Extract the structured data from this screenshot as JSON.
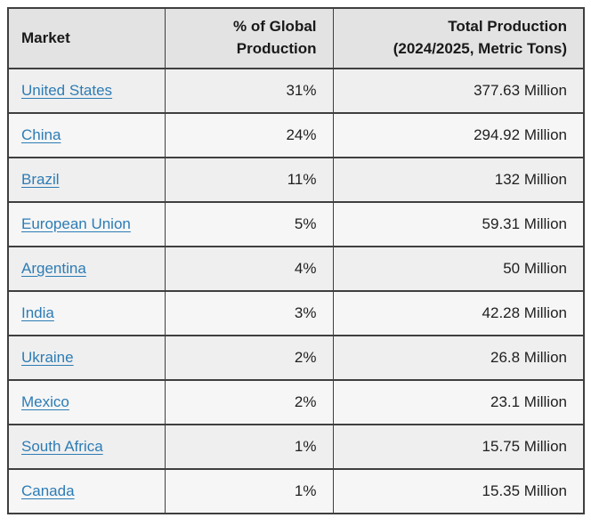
{
  "colors": {
    "header_bg": "#e3e3e3",
    "row_odd_bg": "#efefef",
    "row_even_bg": "#f6f6f6",
    "border": "#3f3f3f",
    "link": "#2d7cb5",
    "text": "#1f1f1f"
  },
  "header": {
    "market": "Market",
    "pct_line1": "% of Global",
    "pct_line2": "Production",
    "total_line1": "Total Production",
    "total_line2": "(2024/2025, Metric Tons)"
  },
  "rows": [
    {
      "market": "United States",
      "pct": "31%",
      "total": "377.63 Million"
    },
    {
      "market": "China",
      "pct": "24%",
      "total": "294.92 Million"
    },
    {
      "market": "Brazil",
      "pct": "11%",
      "total": "132 Million"
    },
    {
      "market": "European Union",
      "pct": "5%",
      "total": "59.31 Million"
    },
    {
      "market": "Argentina",
      "pct": "4%",
      "total": "50 Million"
    },
    {
      "market": "India",
      "pct": "3%",
      "total": "42.28 Million"
    },
    {
      "market": "Ukraine",
      "pct": "2%",
      "total": "26.8 Million"
    },
    {
      "market": "Mexico",
      "pct": "2%",
      "total": "23.1 Million"
    },
    {
      "market": "South Africa",
      "pct": "1%",
      "total": "15.75 Million"
    },
    {
      "market": "Canada",
      "pct": "1%",
      "total": "15.35 Million"
    }
  ],
  "chart_data": {
    "type": "table",
    "title": "",
    "columns": [
      "Market",
      "% of Global Production",
      "Total Production (2024/2025, Metric Tons)"
    ],
    "rows": [
      [
        "United States",
        "31%",
        "377.63 Million"
      ],
      [
        "China",
        "24%",
        "294.92 Million"
      ],
      [
        "Brazil",
        "11%",
        "132 Million"
      ],
      [
        "European Union",
        "5%",
        "59.31 Million"
      ],
      [
        "Argentina",
        "4%",
        "50 Million"
      ],
      [
        "India",
        "3%",
        "42.28 Million"
      ],
      [
        "Ukraine",
        "2%",
        "26.8 Million"
      ],
      [
        "Mexico",
        "2%",
        "23.1 Million"
      ],
      [
        "South Africa",
        "1%",
        "15.75 Million"
      ],
      [
        "Canada",
        "1%",
        "15.35 Million"
      ]
    ],
    "markets": [
      "United States",
      "China",
      "Brazil",
      "European Union",
      "Argentina",
      "India",
      "Ukraine",
      "Mexico",
      "South Africa",
      "Canada"
    ],
    "pct_of_global_production": [
      31,
      24,
      11,
      5,
      4,
      3,
      2,
      2,
      1,
      1
    ],
    "total_production_million_metric_tons": [
      377.63,
      294.92,
      132,
      59.31,
      50,
      42.28,
      26.8,
      23.1,
      15.75,
      15.35
    ]
  }
}
